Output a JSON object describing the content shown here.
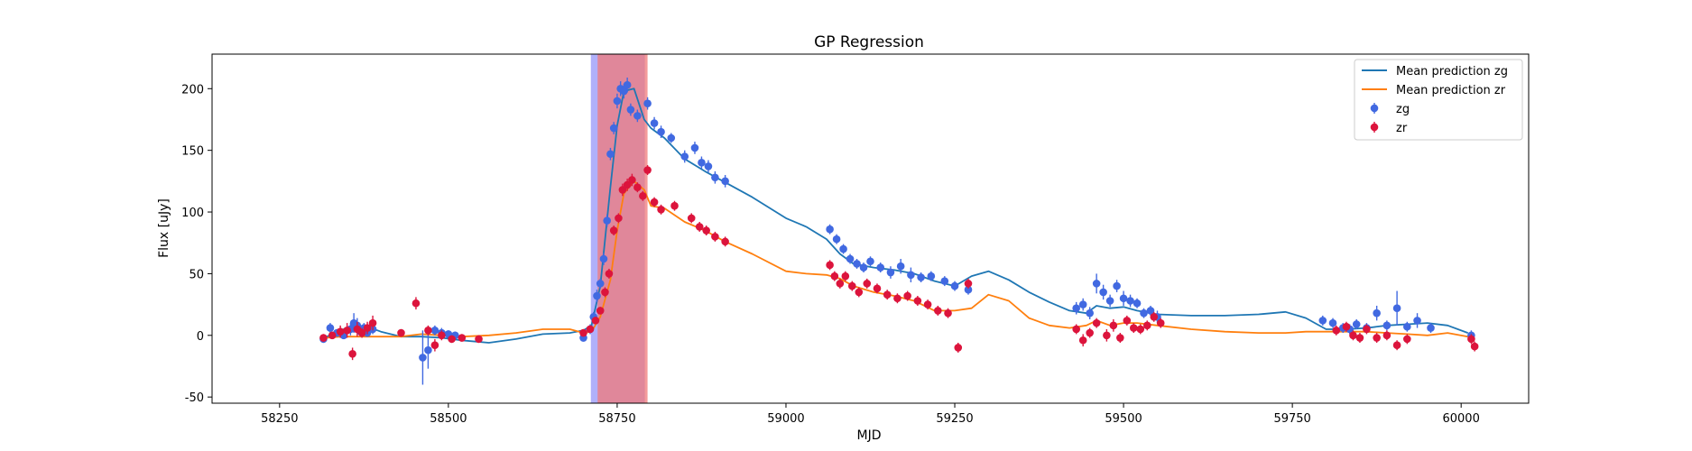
{
  "chart_data": {
    "type": "scatter",
    "title": "GP Regression",
    "xlabel": "MJD",
    "ylabel": "Flux [uJy]",
    "xlim": [
      58150,
      60100
    ],
    "ylim": [
      -55,
      228
    ],
    "xticks": [
      58250,
      58500,
      58750,
      59000,
      59250,
      59500,
      59750,
      60000
    ],
    "yticks": [
      -50,
      0,
      50,
      100,
      150,
      200
    ],
    "grid": false,
    "legend_position": "top-right",
    "shaded_regions": [
      {
        "x0": 58711,
        "x1": 58791,
        "color": "#6f6ff5",
        "opacity": 0.55
      },
      {
        "x0": 58721,
        "x1": 58795,
        "color": "#f07a7a",
        "opacity": 0.75
      }
    ],
    "series": [
      {
        "name": "Mean prediction zg",
        "kind": "line",
        "color": "#1f77b4",
        "x": [
          58320,
          58340,
          58360,
          58380,
          58400,
          58430,
          58460,
          58490,
          58520,
          58560,
          58600,
          58640,
          58680,
          58700,
          58712,
          58725,
          58740,
          58750,
          58760,
          58775,
          58790,
          58800,
          58820,
          58850,
          58880,
          58910,
          58950,
          59000,
          59030,
          59060,
          59080,
          59100,
          59130,
          59160,
          59190,
          59220,
          59250,
          59275,
          59300,
          59330,
          59360,
          59390,
          59420,
          59445,
          59460,
          59480,
          59500,
          59520,
          59550,
          59600,
          59650,
          59700,
          59740,
          59770,
          59800,
          59830,
          59860,
          59890,
          59920,
          59950,
          59980,
          60010
        ],
        "y": [
          -1,
          4,
          8,
          7,
          3,
          -1,
          -1,
          -2,
          -4,
          -6,
          -3,
          1,
          2,
          4,
          8,
          40,
          120,
          170,
          198,
          200,
          175,
          168,
          160,
          143,
          133,
          124,
          112,
          95,
          88,
          78,
          66,
          58,
          55,
          53,
          50,
          44,
          40,
          48,
          52,
          45,
          35,
          27,
          20,
          18,
          24,
          22,
          23,
          20,
          17,
          16,
          16,
          17,
          19,
          14,
          5,
          5,
          6,
          8,
          9,
          10,
          8,
          2
        ]
      },
      {
        "name": "Mean prediction zr",
        "kind": "line",
        "color": "#ff7f0e",
        "x": [
          58320,
          58340,
          58360,
          58380,
          58400,
          58430,
          58460,
          58490,
          58520,
          58560,
          58600,
          58640,
          58680,
          58700,
          58712,
          58725,
          58740,
          58750,
          58760,
          58775,
          58790,
          58800,
          58820,
          58850,
          58880,
          58910,
          58950,
          59000,
          59030,
          59060,
          59080,
          59100,
          59130,
          59160,
          59190,
          59220,
          59250,
          59275,
          59300,
          59330,
          59360,
          59390,
          59420,
          59445,
          59460,
          59480,
          59500,
          59520,
          59550,
          59600,
          59650,
          59700,
          59740,
          59770,
          59800,
          59830,
          59860,
          59890,
          59920,
          59950,
          59980,
          60010
        ],
        "y": [
          -2,
          -1,
          -1,
          -1,
          -1,
          -1,
          1,
          0,
          -1,
          0,
          2,
          5,
          5,
          2,
          3,
          15,
          45,
          85,
          115,
          125,
          118,
          105,
          103,
          92,
          85,
          76,
          66,
          52,
          50,
          49,
          46,
          40,
          35,
          32,
          28,
          20,
          20,
          22,
          33,
          28,
          14,
          8,
          6,
          8,
          12,
          8,
          10,
          10,
          8,
          5,
          3,
          2,
          2,
          3,
          3,
          3,
          3,
          2,
          1,
          0,
          2,
          -1
        ]
      },
      {
        "name": "zg",
        "kind": "points",
        "color": "#4169e1",
        "x": [
          58315,
          58325,
          58335,
          58345,
          58355,
          58360,
          58365,
          58370,
          58375,
          58380,
          58388,
          58462,
          58470,
          58480,
          58490,
          58500,
          58510,
          58700,
          58710,
          58715,
          58720,
          58725,
          58730,
          58735,
          58740,
          58745,
          58750,
          58755,
          58760,
          58765,
          58770,
          58780,
          58795,
          58805,
          58815,
          58830,
          58850,
          58865,
          58875,
          58885,
          58895,
          58910,
          59065,
          59075,
          59085,
          59095,
          59105,
          59115,
          59125,
          59140,
          59155,
          59170,
          59185,
          59200,
          59215,
          59235,
          59250,
          59270,
          59430,
          59440,
          59450,
          59460,
          59470,
          59480,
          59490,
          59500,
          59510,
          59520,
          59530,
          59540,
          59550,
          59795,
          59810,
          59825,
          59835,
          59845,
          59860,
          59875,
          59890,
          59905,
          59920,
          59935,
          59955,
          60015
        ],
        "y": [
          -3,
          6,
          2,
          0,
          5,
          10,
          8,
          3,
          6,
          2,
          5,
          -18,
          -12,
          4,
          2,
          1,
          0,
          -2,
          5,
          15,
          32,
          42,
          62,
          93,
          147,
          168,
          190,
          200,
          198,
          203,
          183,
          178,
          188,
          172,
          165,
          160,
          145,
          152,
          140,
          137,
          128,
          125,
          86,
          78,
          70,
          62,
          58,
          55,
          60,
          55,
          51,
          56,
          49,
          47,
          48,
          44,
          40,
          37,
          22,
          25,
          18,
          42,
          35,
          28,
          40,
          30,
          28,
          26,
          18,
          20,
          15,
          12,
          10,
          6,
          5,
          9,
          6,
          18,
          8,
          22,
          7,
          12,
          6,
          0
        ],
        "yerr": [
          3,
          4,
          3,
          3,
          5,
          8,
          6,
          4,
          4,
          3,
          4,
          22,
          15,
          4,
          4,
          3,
          3,
          3,
          4,
          4,
          5,
          4,
          5,
          5,
          5,
          5,
          6,
          6,
          6,
          6,
          5,
          5,
          5,
          5,
          5,
          4,
          5,
          5,
          5,
          5,
          5,
          5,
          4,
          4,
          4,
          4,
          4,
          4,
          4,
          4,
          5,
          6,
          6,
          4,
          4,
          4,
          4,
          4,
          5,
          5,
          5,
          8,
          6,
          5,
          5,
          6,
          5,
          4,
          4,
          4,
          5,
          4,
          4,
          4,
          4,
          4,
          4,
          6,
          4,
          14,
          4,
          6,
          4,
          4
        ]
      },
      {
        "name": "zr",
        "kind": "points",
        "color": "#dc143c",
        "x": [
          58315,
          58328,
          58340,
          58350,
          58358,
          58365,
          58372,
          58380,
          58388,
          58430,
          58452,
          58470,
          58480,
          58490,
          58505,
          58520,
          58545,
          58700,
          58710,
          58718,
          58725,
          58732,
          58738,
          58745,
          58752,
          58758,
          58765,
          58772,
          58780,
          58788,
          58795,
          58805,
          58815,
          58835,
          58860,
          58872,
          58882,
          58895,
          58910,
          59065,
          59072,
          59080,
          59088,
          59098,
          59108,
          59120,
          59135,
          59150,
          59165,
          59180,
          59195,
          59210,
          59225,
          59240,
          59255,
          59270,
          59430,
          59440,
          59450,
          59460,
          59475,
          59485,
          59495,
          59505,
          59515,
          59525,
          59535,
          59545,
          59555,
          59815,
          59830,
          59840,
          59850,
          59860,
          59875,
          59890,
          59905,
          59920,
          60015,
          60020
        ],
        "y": [
          -2,
          0,
          3,
          4,
          -15,
          5,
          2,
          6,
          10,
          2,
          26,
          4,
          -8,
          0,
          -3,
          -2,
          -3,
          2,
          5,
          12,
          20,
          35,
          50,
          85,
          95,
          118,
          122,
          126,
          120,
          113,
          134,
          108,
          102,
          105,
          95,
          88,
          85,
          80,
          76,
          57,
          48,
          42,
          48,
          40,
          35,
          42,
          38,
          33,
          30,
          32,
          28,
          25,
          20,
          18,
          -10,
          42,
          5,
          -4,
          2,
          10,
          0,
          8,
          -2,
          12,
          6,
          5,
          8,
          15,
          10,
          4,
          7,
          0,
          -2,
          5,
          -2,
          0,
          -8,
          -3,
          -3,
          -9
        ],
        "yerr": [
          3,
          3,
          5,
          6,
          5,
          6,
          4,
          5,
          6,
          3,
          5,
          4,
          5,
          4,
          3,
          3,
          3,
          3,
          3,
          3,
          3,
          4,
          4,
          4,
          4,
          5,
          5,
          5,
          4,
          4,
          4,
          4,
          4,
          4,
          4,
          4,
          4,
          4,
          4,
          4,
          4,
          4,
          4,
          4,
          4,
          4,
          4,
          4,
          4,
          4,
          4,
          4,
          4,
          4,
          4,
          4,
          4,
          5,
          4,
          4,
          5,
          5,
          4,
          4,
          4,
          4,
          4,
          4,
          4,
          4,
          4,
          4,
          4,
          4,
          4,
          4,
          4,
          4,
          4,
          4
        ]
      }
    ]
  }
}
